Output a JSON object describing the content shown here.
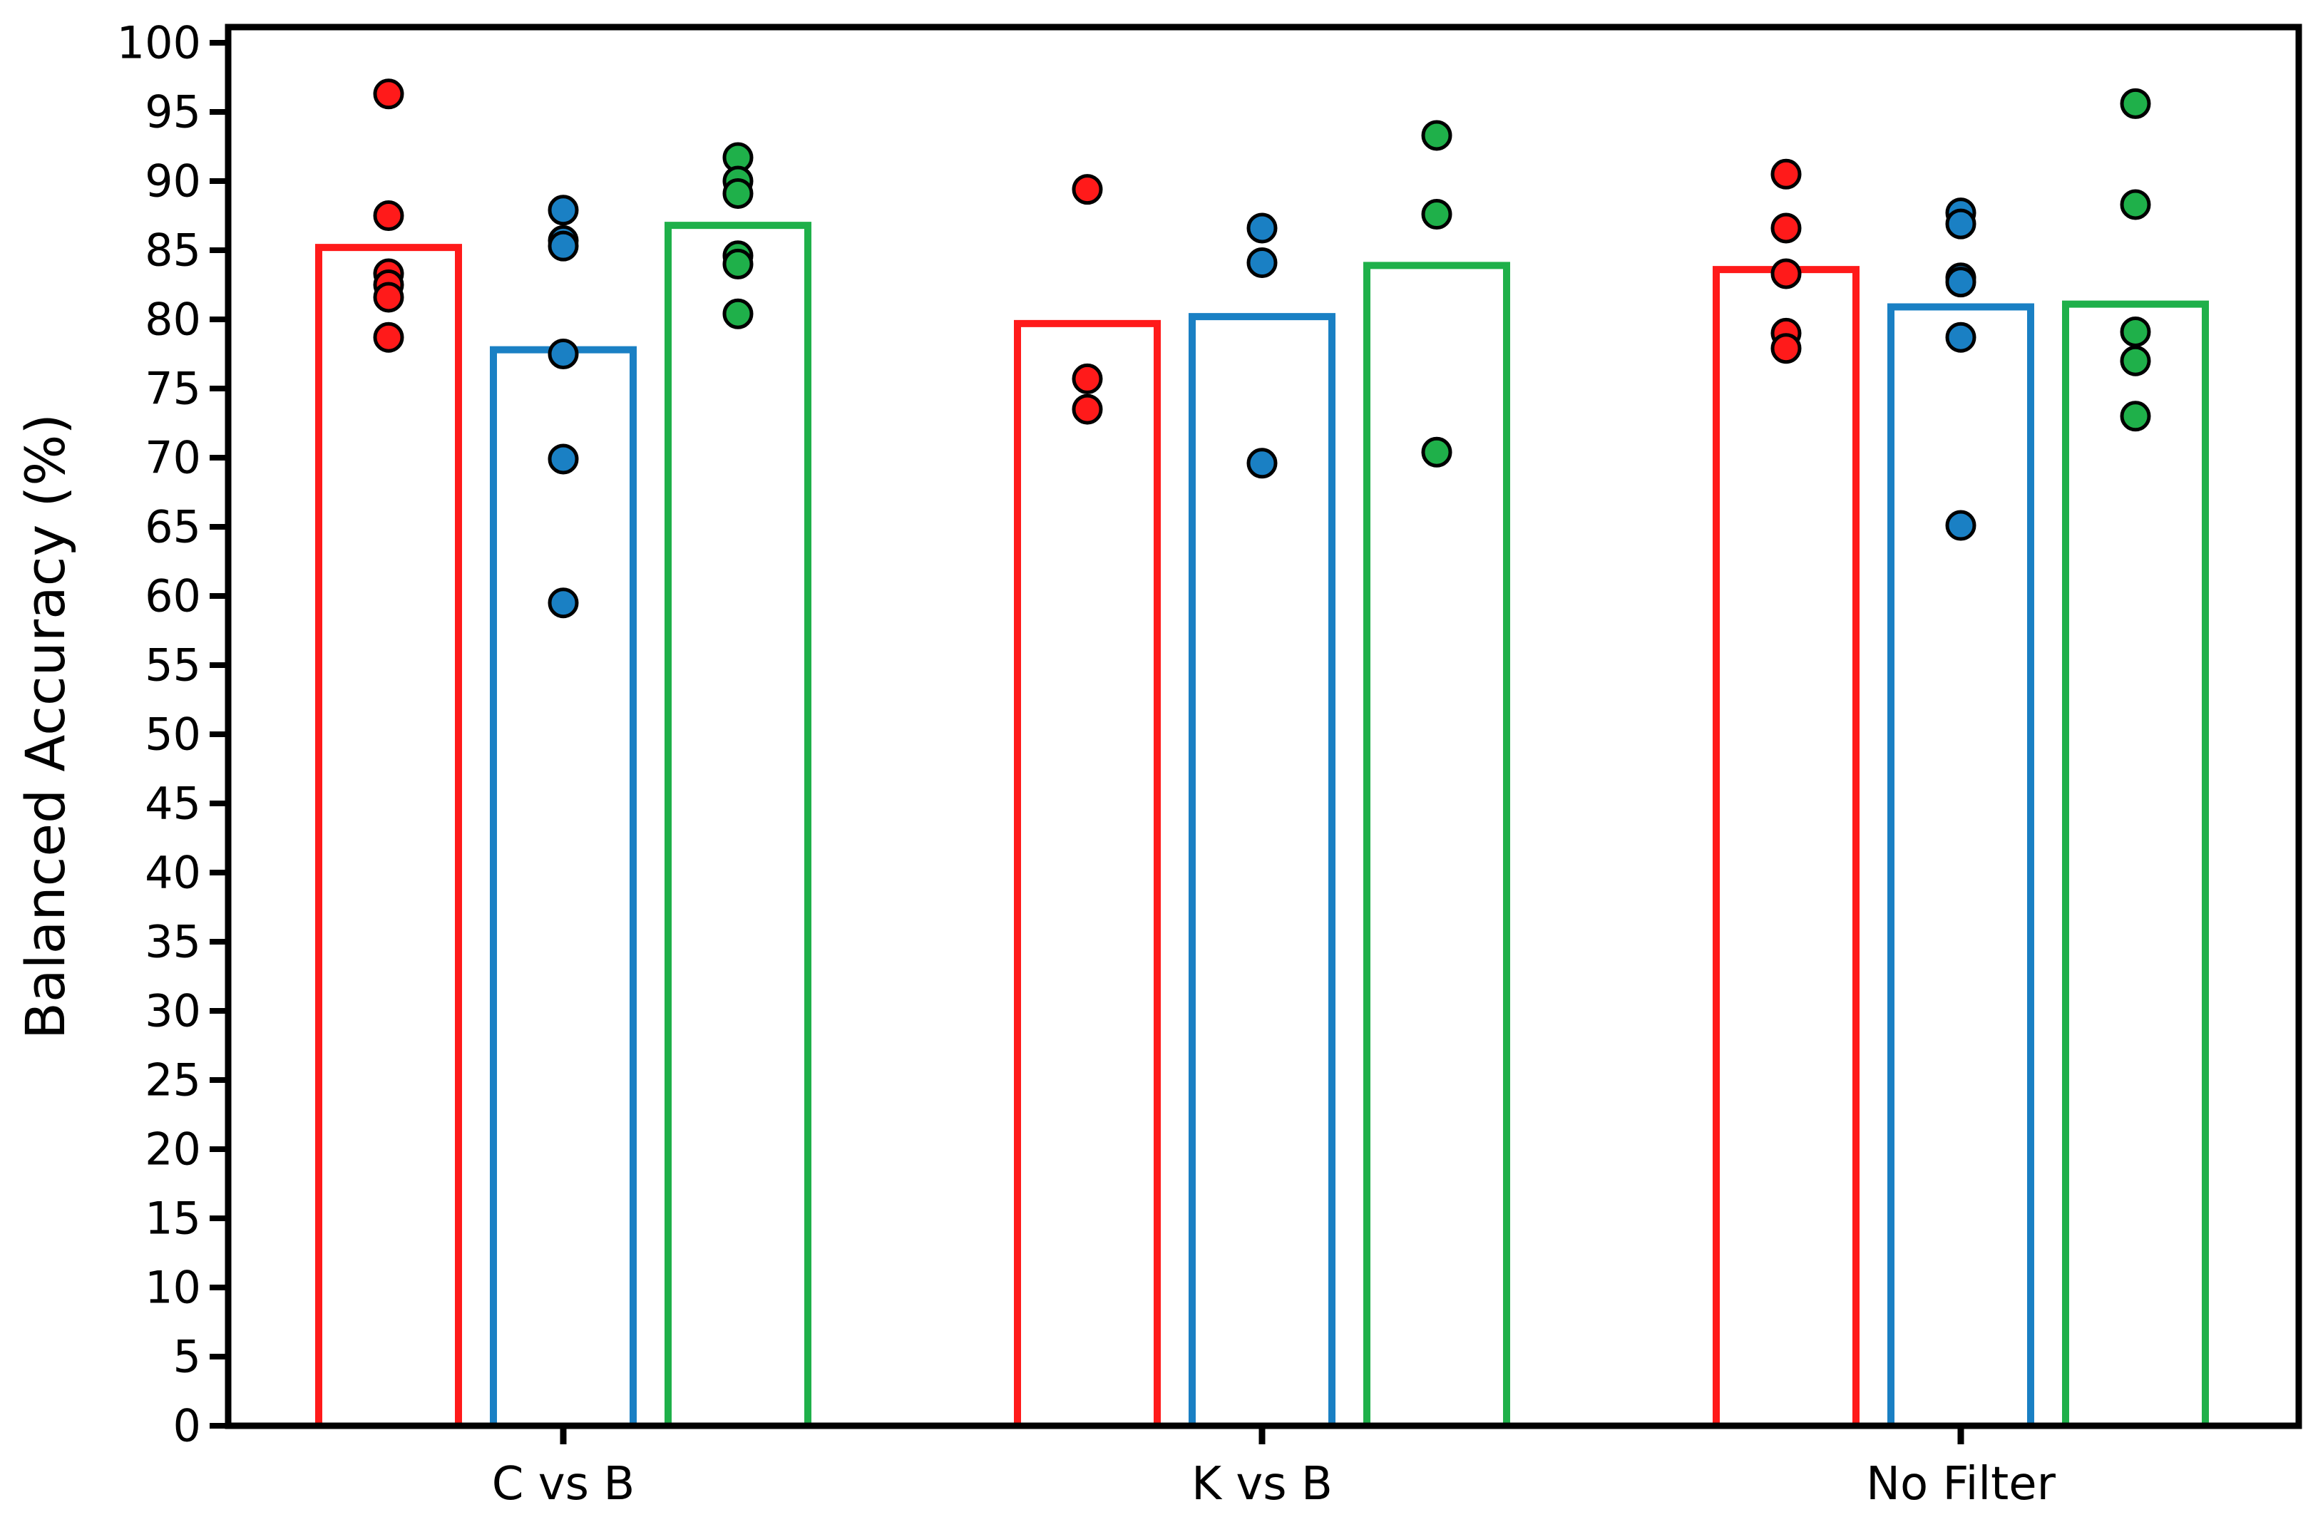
{
  "chart_data": {
    "type": "bar",
    "xlabel": "",
    "ylabel": "Balanced Accuracy (%)",
    "ylim": [
      0,
      100
    ],
    "ytick_step": 5,
    "grid": false,
    "categories": [
      "C vs B",
      "K vs B",
      "No Filter"
    ],
    "bar_style": "outline",
    "series": [
      {
        "color": "#ff1a1a",
        "values": [
          85.2,
          79.7,
          83.6
        ],
        "points": [
          [
            96.3,
            87.5,
            83.3,
            82.5,
            81.6,
            78.7
          ],
          [
            89.4,
            75.7,
            73.5
          ],
          [
            90.5,
            86.6,
            83.3,
            79.0,
            77.9
          ]
        ]
      },
      {
        "color": "#1a80c4",
        "values": [
          77.8,
          80.2,
          80.9
        ],
        "points": [
          [
            87.9,
            85.7,
            85.3,
            77.5,
            69.9,
            59.5
          ],
          [
            86.6,
            84.1,
            69.6
          ],
          [
            87.7,
            86.9,
            83.0,
            82.7,
            78.7,
            65.1
          ]
        ]
      },
      {
        "color": "#1fb04a",
        "values": [
          86.8,
          83.9,
          81.1
        ],
        "points": [
          [
            91.7,
            90.0,
            89.1,
            84.6,
            84.0,
            80.4
          ],
          [
            93.3,
            87.6,
            70.4
          ],
          [
            95.6,
            88.3,
            79.1,
            77.0,
            73.0
          ]
        ]
      }
    ]
  }
}
